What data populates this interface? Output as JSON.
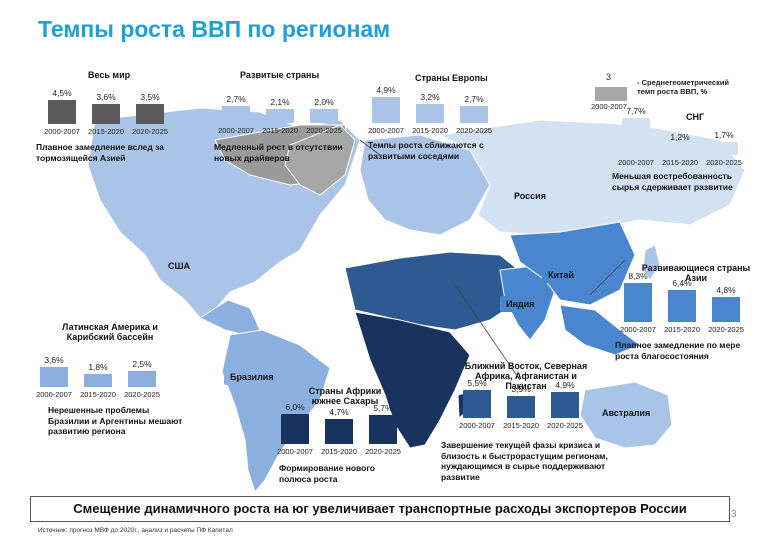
{
  "title": "Темпы роста ВВП по регионам",
  "legend": {
    "sample_value": "3",
    "sample_period": "2000-2007",
    "text": "- Среднегеометрический темп роста ВВП, %"
  },
  "map_labels": {
    "usa": "США",
    "brazil": "Бразилия",
    "russia": "Россия",
    "china": "Китай",
    "india": "Индия",
    "australia": "Австралия"
  },
  "chart_data": [
    {
      "id": "world",
      "type": "bar",
      "title": "Весь мир",
      "categories": [
        "2000-2007",
        "2015-2020",
        "2020-2025"
      ],
      "values": [
        4.5,
        3.6,
        3.5
      ],
      "value_labels": [
        "4,5%",
        "3,6%",
        "3,5%"
      ],
      "color": "#5a5a5a",
      "note": "Плавное замедление вслед за тормозящейся Азией"
    },
    {
      "id": "developed",
      "type": "bar",
      "title": "Развитые страны",
      "categories": [
        "2000-2007",
        "2015-2020",
        "2020-2025"
      ],
      "values": [
        2.7,
        2.1,
        2.0
      ],
      "value_labels": [
        "2,7%",
        "2,1%",
        "2,0%"
      ],
      "color": "#a9c4e6",
      "note": "Медленный рост в отсутствии новых драйверов"
    },
    {
      "id": "europe",
      "type": "bar",
      "title": "Страны Европы",
      "categories": [
        "2000-2007",
        "2015-2020",
        "2020-2025"
      ],
      "values": [
        4.9,
        3.2,
        2.7
      ],
      "value_labels": [
        "4,9%",
        "3,2%",
        "2,7%"
      ],
      "color": "#a9c4e6",
      "note": "Темпы роста сближаются с развитыми соседями"
    },
    {
      "id": "cis",
      "type": "bar",
      "title": "СНГ",
      "categories": [
        "2000-2007",
        "2015-2020",
        "2020-2025"
      ],
      "values": [
        7.7,
        1.2,
        1.7
      ],
      "value_labels": [
        "7,7%",
        "1,2%",
        "1,7%"
      ],
      "color": "#d3e2f2",
      "note": "Меньшая востребованность сырья сдерживает развитие"
    },
    {
      "id": "developing_asia",
      "type": "bar",
      "title": "Развивающиеся страны Азии",
      "categories": [
        "2000-2007",
        "2015-2020",
        "2020-2025"
      ],
      "values": [
        8.3,
        6.4,
        4.8
      ],
      "value_labels": [
        "8,3%",
        "6,4%",
        "4,8%"
      ],
      "color": "#4a86d0",
      "note": "Плавное замедление по мере роста благосостояния"
    },
    {
      "id": "latam",
      "type": "bar",
      "title": "Латинская Америка и Карибский бассейн",
      "categories": [
        "2000-2007",
        "2015-2020",
        "2020-2025"
      ],
      "values": [
        3.6,
        1.8,
        2.5
      ],
      "value_labels": [
        "3,6%",
        "1,8%",
        "2,5%"
      ],
      "color": "#8bb0df",
      "note": "Нерешенные проблемы Бразилии и Аргентины мешают развитию региона"
    },
    {
      "id": "ssa",
      "type": "bar",
      "title": "Страны Африки южнее Сахары",
      "categories": [
        "2000-2007",
        "2015-2020",
        "2020-2025"
      ],
      "values": [
        6.0,
        4.7,
        5.7
      ],
      "value_labels": [
        "6,0%",
        "4,7%",
        "5,7%"
      ],
      "color": "#17335e",
      "note": "Формирование нового полюса роста"
    },
    {
      "id": "mena",
      "type": "bar",
      "title": "Ближний Восток, Северная Африка, Афганистан и Пакистан",
      "categories": [
        "2000-2007",
        "2015-2020",
        "2020-2025"
      ],
      "values": [
        5.5,
        3.9,
        4.9
      ],
      "value_labels": [
        "5,5%",
        "3,9%",
        "4,9%"
      ],
      "color": "#2d5a91",
      "note": "Завершение текущей фазы кризиса и близость к быстрорастущим регионам, нуждающимся в сырье поддерживают развитие"
    }
  ],
  "bottom_message": "Смещение динамичного роста на юг увеличивает транспортные расходы экспортеров России",
  "page_number": "3",
  "source": "Источник: прогноз МВФ до 2020г., анализ и расчеты ПФ Капитал"
}
